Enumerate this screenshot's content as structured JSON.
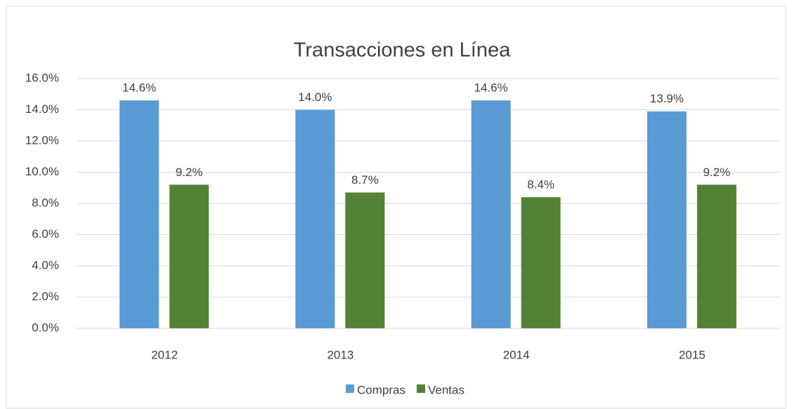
{
  "chart_data": {
    "type": "bar",
    "title": "Transacciones en Línea",
    "categories": [
      "2012",
      "2013",
      "2014",
      "2015"
    ],
    "series": [
      {
        "name": "Compras",
        "color": "#5b9bd5",
        "values": [
          14.6,
          14.0,
          14.6,
          13.9
        ],
        "value_labels": [
          "14.6%",
          "14.0%",
          "14.6%",
          "13.9%"
        ]
      },
      {
        "name": "Ventas",
        "color": "#548235",
        "values": [
          9.2,
          8.7,
          8.4,
          9.2
        ],
        "value_labels": [
          "9.2%",
          "8.7%",
          "8.4%",
          "9.2%"
        ]
      }
    ],
    "ylim": [
      0,
      16
    ],
    "yticks": [
      {
        "value": 0,
        "label": "0.0%"
      },
      {
        "value": 2,
        "label": "2.0%"
      },
      {
        "value": 4,
        "label": "4.0%"
      },
      {
        "value": 6,
        "label": "6.0%"
      },
      {
        "value": 8,
        "label": "8.0%"
      },
      {
        "value": 10,
        "label": "10.0%"
      },
      {
        "value": 12,
        "label": "12.0%"
      },
      {
        "value": 14,
        "label": "14.0%"
      },
      {
        "value": 16,
        "label": "16.0%"
      }
    ],
    "grid": true,
    "legend": "bottom"
  }
}
